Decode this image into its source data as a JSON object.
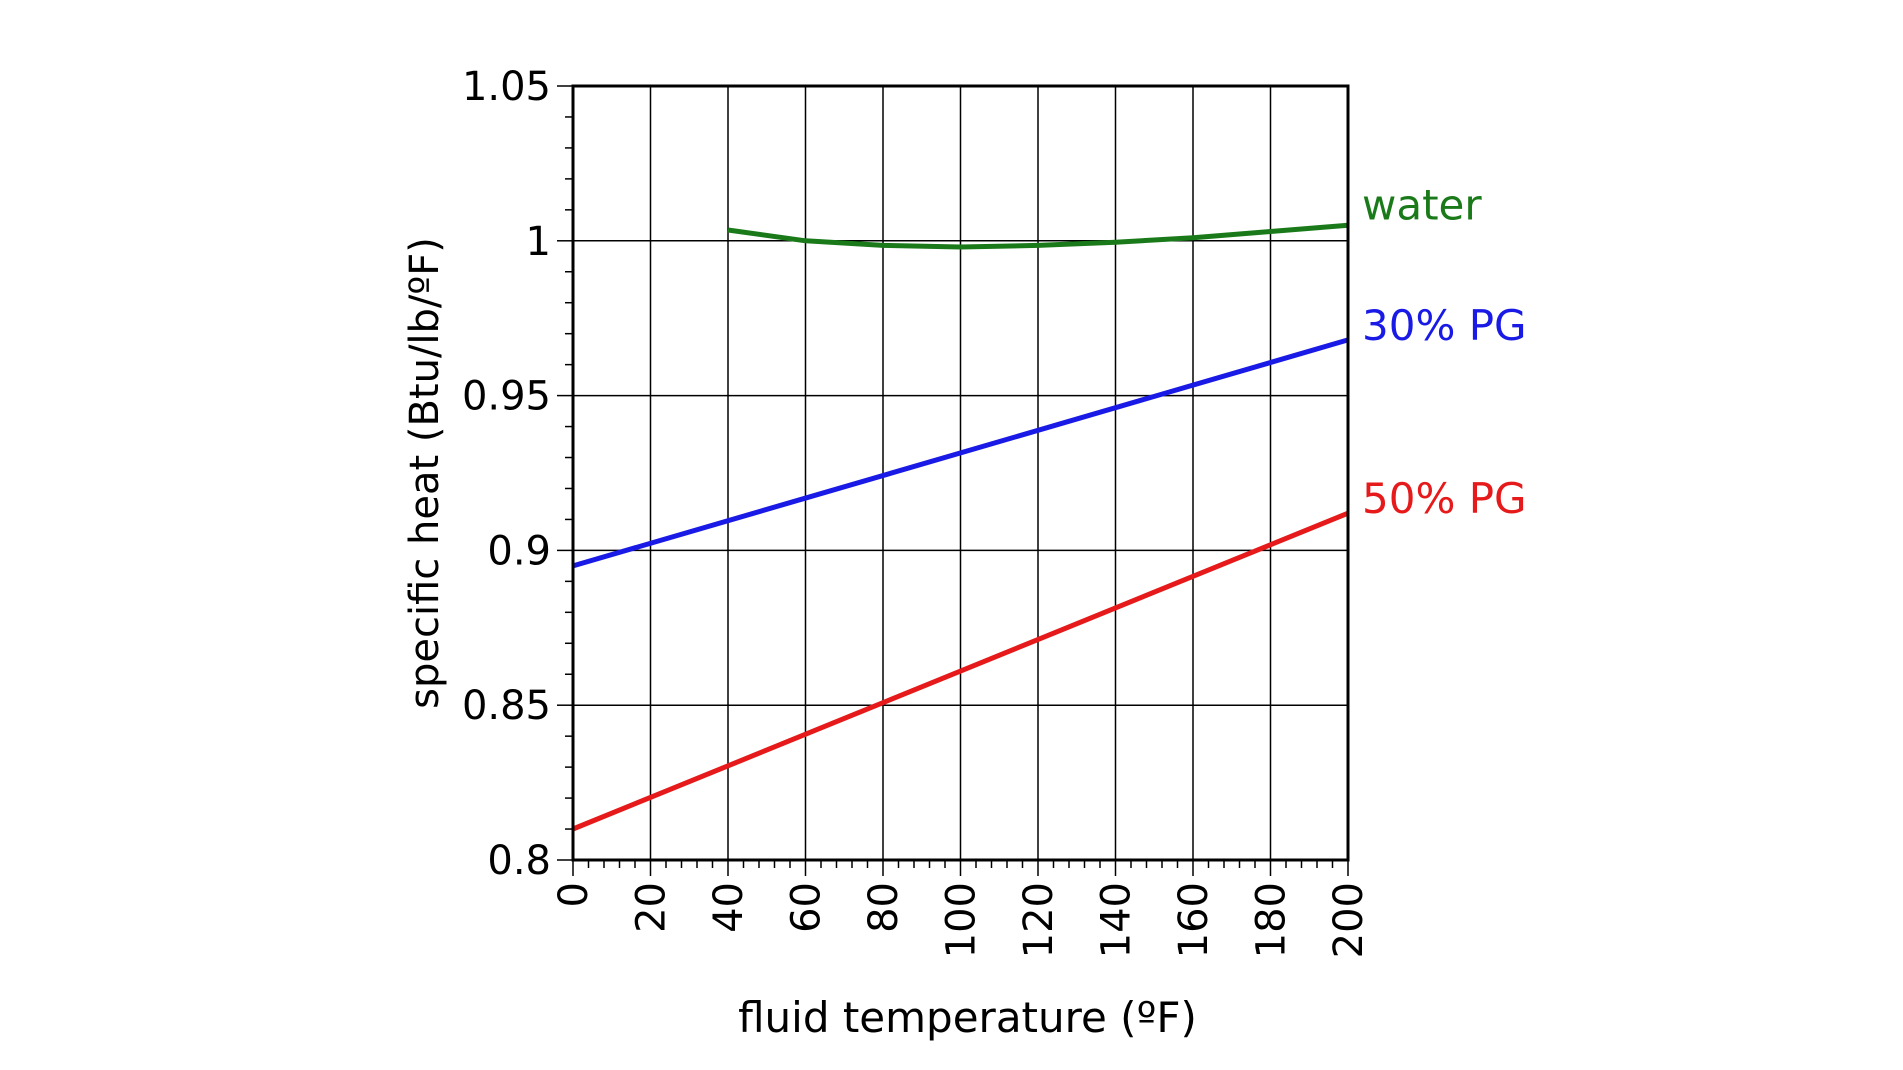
{
  "chart_data": {
    "type": "line",
    "title": "",
    "xlabel": "fluid temperature (ºF)",
    "ylabel": "specific heat (Btu/lb/ºF)",
    "xlim": [
      0,
      200
    ],
    "ylim": [
      0.8,
      1.05
    ],
    "xticks": [
      0,
      20,
      40,
      60,
      80,
      100,
      120,
      140,
      160,
      180,
      200
    ],
    "xtick_labels": [
      "0",
      "20",
      "40",
      "60",
      "80",
      "100",
      "120",
      "140",
      "160",
      "180",
      "200"
    ],
    "yticks": [
      0.8,
      0.85,
      0.9,
      0.95,
      1,
      1.05
    ],
    "ytick_labels": [
      "0.8",
      "0.85",
      "0.9",
      "0.95",
      "1",
      "1.05"
    ],
    "grid": true,
    "legend": "labels at right end of each line",
    "series": [
      {
        "name": "water",
        "color": "#1a7a1a",
        "x": [
          40,
          60,
          80,
          100,
          120,
          140,
          160,
          180,
          200
        ],
        "y": [
          1.0035,
          1.0,
          0.9985,
          0.998,
          0.9985,
          0.9995,
          1.001,
          1.003,
          1.005
        ]
      },
      {
        "name": "30% PG",
        "color": "#1a1ae6",
        "x": [
          0,
          200
        ],
        "y": [
          0.895,
          0.968
        ]
      },
      {
        "name": "50% PG",
        "color": "#e61a1a",
        "x": [
          0,
          200
        ],
        "y": [
          0.81,
          0.912
        ]
      }
    ]
  }
}
